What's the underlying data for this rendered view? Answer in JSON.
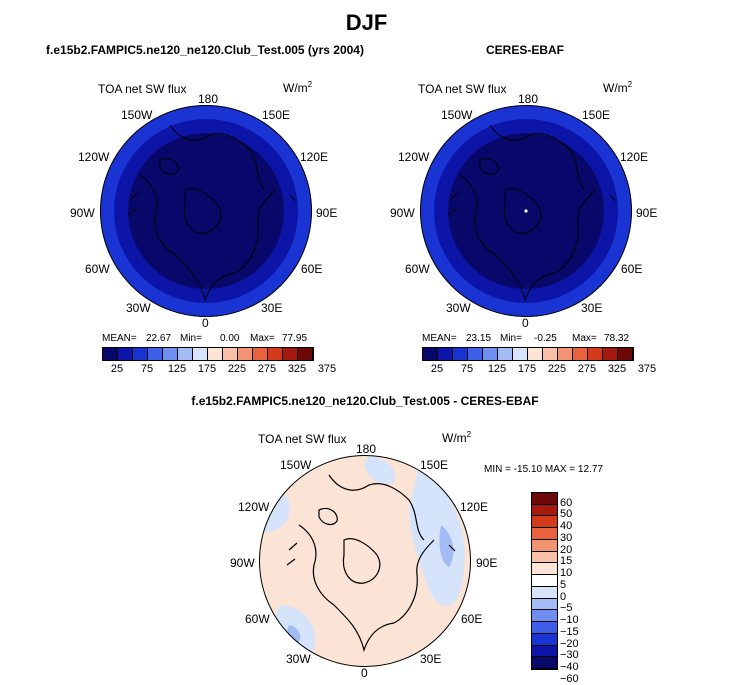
{
  "figure": {
    "title": "DJF",
    "colors": {
      "abs_scale": [
        "#08086b",
        "#0c15a8",
        "#1a34d4",
        "#3d5ee8",
        "#6f8ff0",
        "#a3bcf5",
        "#d6e4fb",
        "#fbe4d6",
        "#f8c0a6",
        "#f29472",
        "#e8623d",
        "#d23a1a",
        "#a51a0c",
        "#6b0808"
      ],
      "diff_scale": [
        "#08086b",
        "#0c15a8",
        "#1a34d4",
        "#3d5ee8",
        "#6f8ff0",
        "#a3bcf5",
        "#d6e4fb",
        "#ffffff",
        "#fbe4d6",
        "#f8c0a6",
        "#f29472",
        "#e8623d",
        "#d23a1a",
        "#a51a0c",
        "#6b0808"
      ]
    }
  },
  "panels": [
    {
      "title": "f.e15b2.FAMPIC5.ne120_ne120.Club_Test.005 (yrs 2004)",
      "field_label": "TOA net SW flux",
      "units_label": "W/m",
      "units_exp": "2",
      "lon_labels": [
        "180",
        "150W",
        "150E",
        "120W",
        "120E",
        "90W",
        "90E",
        "60W",
        "60E",
        "30W",
        "30E",
        "0"
      ],
      "stats": {
        "mean_label": "MEAN=",
        "mean": "22.67",
        "min_label": "Min=",
        "min": "0.00",
        "max_label": "Max=",
        "max": "77.95"
      },
      "colorbar_ticks": [
        "25",
        "75",
        "125",
        "175",
        "225",
        "275",
        "325",
        "375"
      ]
    },
    {
      "title": "CERES-EBAF",
      "field_label": "TOA net SW flux",
      "units_label": "W/m",
      "units_exp": "2",
      "lon_labels": [
        "180",
        "150W",
        "150E",
        "120W",
        "120E",
        "90W",
        "90E",
        "60W",
        "60E",
        "30W",
        "30E",
        "0"
      ],
      "stats": {
        "mean_label": "MEAN=",
        "mean": "23.15",
        "min_label": "Min=",
        "min": "-0.25",
        "max_label": "Max=",
        "max": "78.32"
      },
      "colorbar_ticks": [
        "25",
        "75",
        "125",
        "175",
        "225",
        "275",
        "325",
        "375"
      ]
    },
    {
      "title": "f.e15b2.FAMPIC5.ne120_ne120.Club_Test.005 - CERES-EBAF",
      "field_label": "TOA net SW flux",
      "units_label": "W/m",
      "units_exp": "2",
      "lon_labels": [
        "180",
        "150W",
        "150E",
        "120W",
        "120E",
        "90W",
        "90E",
        "60W",
        "60E",
        "30W",
        "30E",
        "0"
      ],
      "stats_text": "MIN = -15.10 MAX =  12.77",
      "colorbar_ticks": [
        "60",
        "50",
        "40",
        "30",
        "20",
        "15",
        "10",
        "5",
        "0",
        "-5",
        "-10",
        "-15",
        "-20",
        "-30",
        "-40",
        "-60"
      ]
    }
  ],
  "chart_data": [
    {
      "type": "heatmap",
      "projection": "polar stereographic (north pole)",
      "title": "f.e15b2.FAMPIC5.ne120_ne120.Club_Test.005 (yrs 2004)",
      "variable": "TOA net SW flux",
      "units": "W/m^2",
      "mean": 22.67,
      "min": 0.0,
      "max": 77.95,
      "colorbar_levels": [
        25,
        75,
        125,
        175,
        225,
        275,
        325,
        375
      ]
    },
    {
      "type": "heatmap",
      "projection": "polar stereographic (north pole)",
      "title": "CERES-EBAF",
      "variable": "TOA net SW flux",
      "units": "W/m^2",
      "mean": 23.15,
      "min": -0.25,
      "max": 78.32,
      "colorbar_levels": [
        25,
        75,
        125,
        175,
        225,
        275,
        325,
        375
      ]
    },
    {
      "type": "heatmap",
      "projection": "polar stereographic (north pole)",
      "title": "f.e15b2.FAMPIC5.ne120_ne120.Club_Test.005 - CERES-EBAF",
      "variable": "TOA net SW flux",
      "units": "W/m^2",
      "min": -15.1,
      "max": 12.77,
      "colorbar_levels": [
        -60,
        -40,
        -30,
        -20,
        -15,
        -10,
        -5,
        0,
        5,
        10,
        15,
        20,
        30,
        40,
        50,
        60
      ]
    }
  ]
}
